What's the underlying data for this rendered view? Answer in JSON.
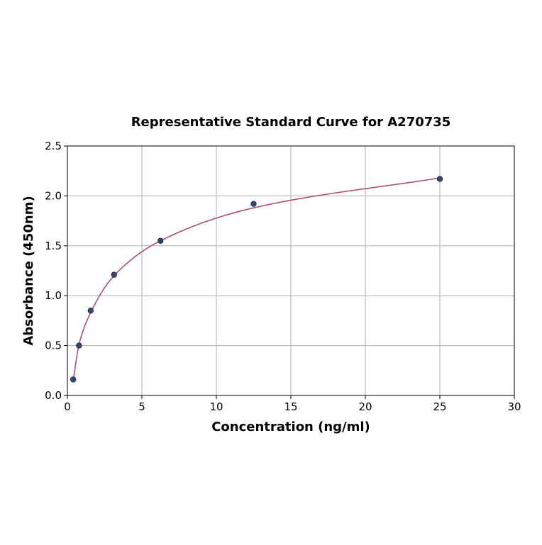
{
  "chart_data": {
    "type": "scatter",
    "title": "Representative Standard Curve for A270735",
    "xlabel": "Concentration (ng/ml)",
    "ylabel": "Absorbance (450nm)",
    "xlim": [
      0,
      30
    ],
    "ylim": [
      0,
      2.5
    ],
    "xticks": [
      "0",
      "5",
      "10",
      "15",
      "20",
      "25",
      "30"
    ],
    "yticks": [
      "0.0",
      "0.5",
      "1.0",
      "1.5",
      "2.0",
      "2.5"
    ],
    "grid": true,
    "series": [
      {
        "type": "scatter",
        "x": [
          0.39,
          0.78,
          1.56,
          3.13,
          6.25,
          12.5,
          25
        ],
        "y": [
          0.16,
          0.5,
          0.85,
          1.21,
          1.55,
          1.92,
          2.17
        ]
      },
      {
        "type": "line",
        "x": [
          0.39,
          0.78,
          1.56,
          3.13,
          6.25,
          12.5,
          25
        ],
        "y": [
          0.15,
          0.51,
          0.83,
          1.2,
          1.55,
          1.88,
          2.18
        ]
      }
    ],
    "colors": {
      "points": "#34456f",
      "point_edge": "#1f2a4a",
      "curve": "#b0506e",
      "grid": "#b0b0b0",
      "axis": "#000000"
    }
  }
}
